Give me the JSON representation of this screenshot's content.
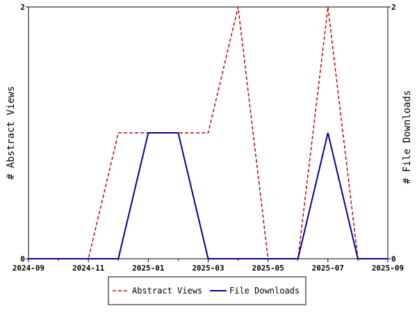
{
  "chart_data": {
    "type": "line",
    "x": [
      "2024-09",
      "2024-10",
      "2024-11",
      "2024-12",
      "2025-01",
      "2025-02",
      "2025-03",
      "2025-04",
      "2025-05",
      "2025-06",
      "2025-07",
      "2025-08",
      "2025-09"
    ],
    "x_tick_labels": [
      "2024-09",
      "2024-11",
      "2025-01",
      "2025-03",
      "2025-05",
      "2025-07",
      "2025-09"
    ],
    "series": [
      {
        "name": "Abstract Views",
        "values": [
          0,
          0,
          0,
          1,
          1,
          1,
          1,
          2,
          0,
          0,
          2,
          0,
          0
        ],
        "color": "#cc0000",
        "style": "dashed",
        "axis": "left"
      },
      {
        "name": "File Downloads",
        "values": [
          0,
          0,
          0,
          0,
          1,
          1,
          0,
          0,
          0,
          0,
          1,
          0,
          0
        ],
        "color": "#00009c",
        "style": "solid",
        "axis": "right"
      }
    ],
    "ylabel_left": "# Abstract Views",
    "ylabel_right": "# File Downloads",
    "ylim_left": [
      0,
      2
    ],
    "ylim_right": [
      0,
      2
    ],
    "y_ticks_left": [
      0,
      2
    ],
    "y_ticks_right": [
      0,
      2
    ],
    "grid": false,
    "legend_placement": "bottom"
  }
}
